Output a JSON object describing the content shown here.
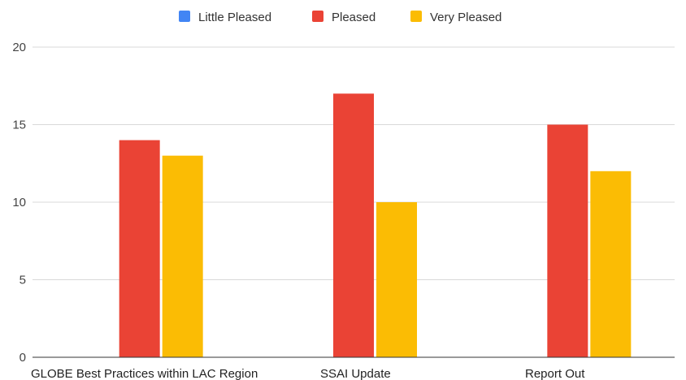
{
  "chart_data": {
    "type": "bar",
    "title": "",
    "xlabel": "",
    "ylabel": "",
    "ylim": [
      0,
      20
    ],
    "y_ticks": [
      0,
      5,
      10,
      15,
      20
    ],
    "grid": true,
    "legend_position": "top-center",
    "categories": [
      "GLOBE Best Practices within LAC Region",
      "SSAI Update",
      "Report Out"
    ],
    "series": [
      {
        "name": "Little Pleased",
        "color": "#4285f4",
        "values": [
          0,
          0,
          0
        ]
      },
      {
        "name": "Pleased",
        "color": "#ea4335",
        "values": [
          14,
          17,
          15
        ]
      },
      {
        "name": "Very Pleased",
        "color": "#fbbc04",
        "values": [
          13,
          10,
          12
        ]
      }
    ]
  }
}
